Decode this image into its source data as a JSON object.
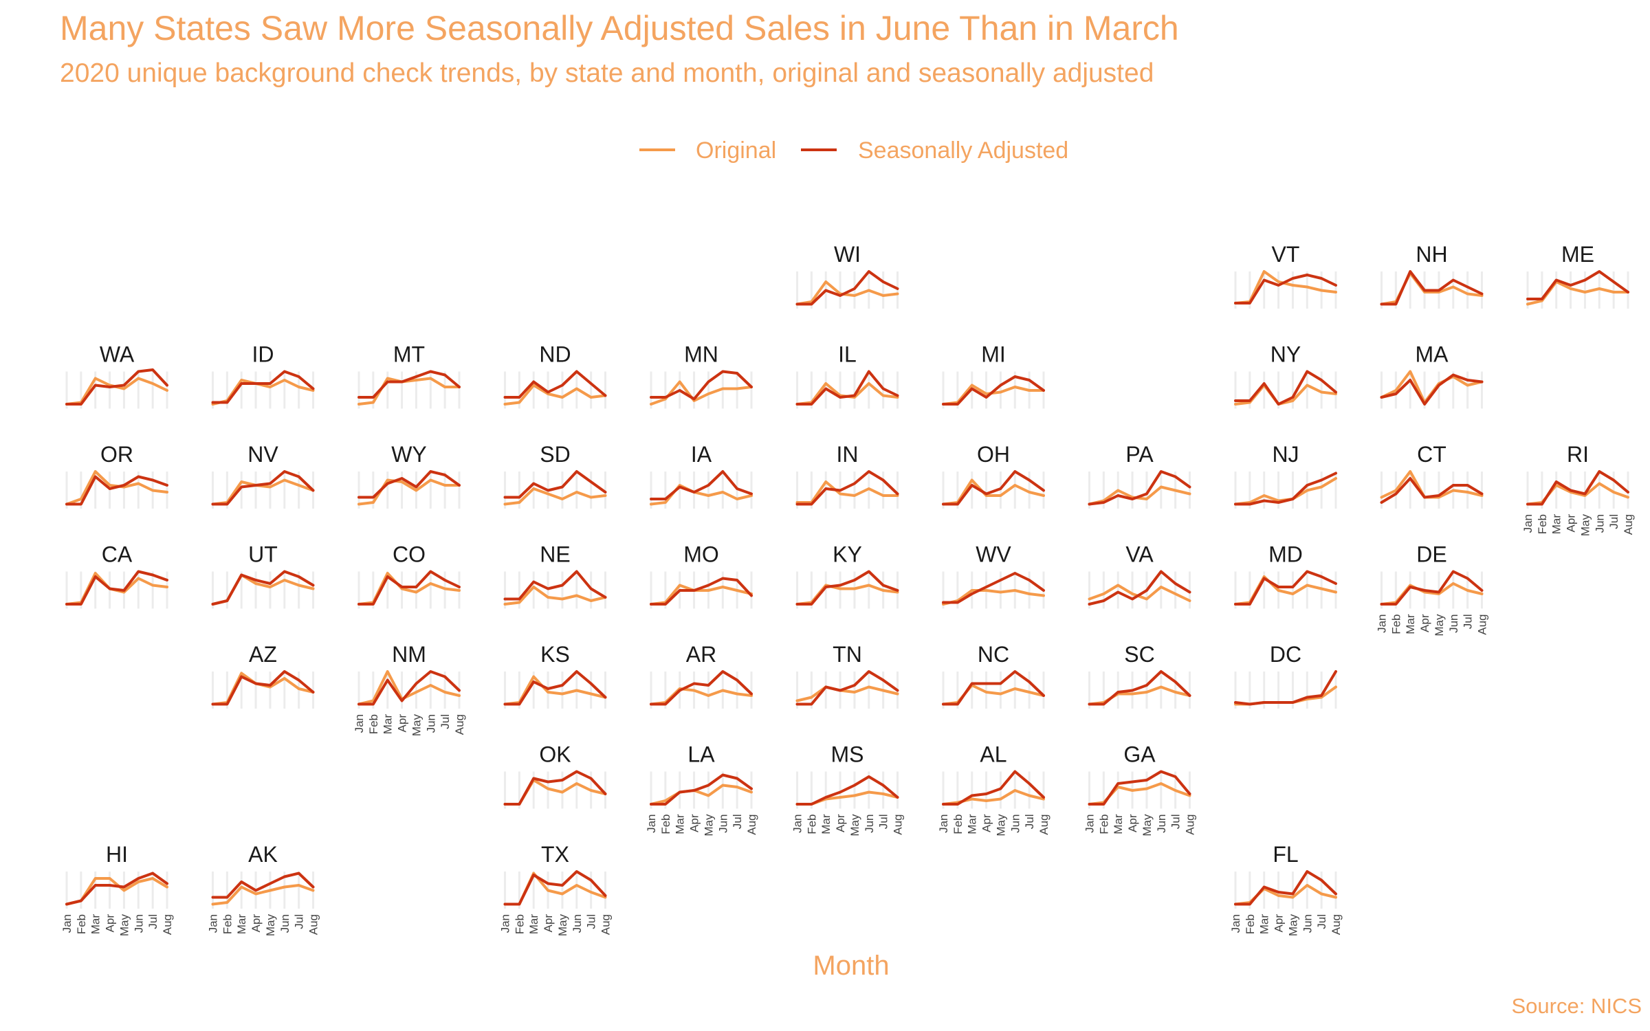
{
  "chart_data": {
    "type": "line",
    "title": "Many States Saw More Seasonally Adjusted Sales in June Than in March",
    "subtitle": "2020 unique background check trends, by state and month, original and seasonally adjusted",
    "xlabel": "Month",
    "ylabel": "",
    "source": "Source: NICS",
    "x": [
      "Jan",
      "Feb",
      "Mar",
      "Apr",
      "May",
      "Jun",
      "Jul",
      "Aug"
    ],
    "legend": {
      "position": "top",
      "items": [
        {
          "name": "Original",
          "color": "#F59A4A"
        },
        {
          "name": "Seasonally Adjusted",
          "color": "#CC3311"
        }
      ]
    },
    "panels": [
      {
        "state": "WI",
        "original": [
          0.05,
          0.12,
          0.7,
          0.35,
          0.3,
          0.45,
          0.3,
          0.35
        ],
        "adjusted": [
          0.05,
          0.05,
          0.45,
          0.3,
          0.5,
          1.0,
          0.7,
          0.5
        ]
      },
      {
        "state": "VT",
        "original": [
          0.08,
          0.12,
          1.0,
          0.7,
          0.6,
          0.55,
          0.45,
          0.4
        ],
        "adjusted": [
          0.08,
          0.08,
          0.75,
          0.6,
          0.8,
          0.9,
          0.8,
          0.6
        ]
      },
      {
        "state": "NH",
        "original": [
          0.05,
          0.12,
          0.95,
          0.4,
          0.4,
          0.55,
          0.35,
          0.3
        ],
        "adjusted": [
          0.05,
          0.05,
          1.0,
          0.45,
          0.45,
          0.75,
          0.55,
          0.35
        ]
      },
      {
        "state": "ME",
        "original": [
          0.05,
          0.15,
          0.7,
          0.5,
          0.4,
          0.5,
          0.4,
          0.4
        ],
        "adjusted": [
          0.2,
          0.2,
          0.75,
          0.6,
          0.75,
          1.0,
          0.7,
          0.4
        ]
      },
      {
        "state": "WA",
        "original": [
          0.05,
          0.1,
          0.8,
          0.6,
          0.5,
          0.8,
          0.65,
          0.45
        ],
        "adjusted": [
          0.05,
          0.05,
          0.6,
          0.55,
          0.6,
          1.0,
          1.05,
          0.6
        ]
      },
      {
        "state": "ID",
        "original": [
          0.05,
          0.15,
          0.75,
          0.65,
          0.55,
          0.75,
          0.55,
          0.45
        ],
        "adjusted": [
          0.1,
          0.1,
          0.65,
          0.65,
          0.65,
          1.0,
          0.85,
          0.5
        ]
      },
      {
        "state": "MT",
        "original": [
          0.05,
          0.1,
          0.8,
          0.7,
          0.75,
          0.8,
          0.55,
          0.55
        ],
        "adjusted": [
          0.25,
          0.25,
          0.7,
          0.7,
          0.85,
          1.0,
          0.9,
          0.55
        ]
      },
      {
        "state": "ND",
        "original": [
          0.05,
          0.1,
          0.6,
          0.35,
          0.25,
          0.5,
          0.25,
          0.3
        ],
        "adjusted": [
          0.25,
          0.25,
          0.7,
          0.4,
          0.6,
          1.0,
          0.65,
          0.3
        ]
      },
      {
        "state": "MN",
        "original": [
          0.05,
          0.2,
          0.7,
          0.15,
          0.35,
          0.5,
          0.5,
          0.55
        ],
        "adjusted": [
          0.25,
          0.25,
          0.45,
          0.2,
          0.7,
          1.0,
          0.95,
          0.55
        ]
      },
      {
        "state": "IL",
        "original": [
          0.05,
          0.1,
          0.65,
          0.3,
          0.25,
          0.65,
          0.3,
          0.25
        ],
        "adjusted": [
          0.05,
          0.05,
          0.5,
          0.25,
          0.3,
          1.0,
          0.5,
          0.3
        ]
      },
      {
        "state": "MI",
        "original": [
          0.05,
          0.1,
          0.6,
          0.35,
          0.4,
          0.55,
          0.45,
          0.45
        ],
        "adjusted": [
          0.05,
          0.05,
          0.5,
          0.25,
          0.6,
          0.85,
          0.75,
          0.45
        ]
      },
      {
        "state": "NY",
        "original": [
          0.05,
          0.1,
          0.6,
          0.05,
          0.15,
          0.6,
          0.4,
          0.35
        ],
        "adjusted": [
          0.15,
          0.15,
          0.65,
          0.05,
          0.25,
          1.0,
          0.75,
          0.4
        ]
      },
      {
        "state": "MA",
        "original": [
          0.25,
          0.45,
          1.0,
          0.1,
          0.65,
          0.85,
          0.6,
          0.7
        ],
        "adjusted": [
          0.25,
          0.35,
          0.75,
          0.05,
          0.6,
          0.9,
          0.75,
          0.7
        ]
      },
      {
        "state": "OR",
        "original": [
          0.05,
          0.2,
          1.0,
          0.6,
          0.55,
          0.65,
          0.45,
          0.4
        ],
        "adjusted": [
          0.05,
          0.05,
          0.85,
          0.5,
          0.6,
          0.85,
          0.75,
          0.6
        ]
      },
      {
        "state": "NV",
        "original": [
          0.05,
          0.1,
          0.7,
          0.6,
          0.55,
          0.75,
          0.6,
          0.45
        ],
        "adjusted": [
          0.05,
          0.05,
          0.55,
          0.6,
          0.65,
          1.0,
          0.85,
          0.45
        ]
      },
      {
        "state": "WY",
        "original": [
          0.05,
          0.1,
          0.75,
          0.7,
          0.45,
          0.75,
          0.6,
          0.6
        ],
        "adjusted": [
          0.25,
          0.25,
          0.65,
          0.8,
          0.55,
          1.0,
          0.9,
          0.6
        ]
      },
      {
        "state": "SD",
        "original": [
          0.05,
          0.1,
          0.5,
          0.35,
          0.2,
          0.4,
          0.25,
          0.3
        ],
        "adjusted": [
          0.25,
          0.25,
          0.65,
          0.45,
          0.55,
          1.0,
          0.7,
          0.4
        ]
      },
      {
        "state": "IA",
        "original": [
          0.05,
          0.1,
          0.6,
          0.4,
          0.3,
          0.4,
          0.2,
          0.3
        ],
        "adjusted": [
          0.2,
          0.2,
          0.55,
          0.4,
          0.6,
          1.0,
          0.5,
          0.35
        ]
      },
      {
        "state": "IN",
        "original": [
          0.1,
          0.1,
          0.7,
          0.35,
          0.3,
          0.5,
          0.3,
          0.3
        ],
        "adjusted": [
          0.05,
          0.05,
          0.5,
          0.45,
          0.65,
          1.0,
          0.75,
          0.35
        ]
      },
      {
        "state": "OH",
        "original": [
          0.05,
          0.1,
          0.75,
          0.3,
          0.3,
          0.6,
          0.4,
          0.3
        ],
        "adjusted": [
          0.05,
          0.05,
          0.6,
          0.35,
          0.5,
          1.0,
          0.75,
          0.45
        ]
      },
      {
        "state": "PA",
        "original": [
          0.05,
          0.15,
          0.45,
          0.25,
          0.2,
          0.55,
          0.45,
          0.35
        ],
        "adjusted": [
          0.05,
          0.1,
          0.3,
          0.2,
          0.35,
          1.0,
          0.85,
          0.55
        ]
      },
      {
        "state": "NJ",
        "original": [
          0.05,
          0.1,
          0.3,
          0.15,
          0.2,
          0.45,
          0.55,
          0.8
        ],
        "adjusted": [
          0.05,
          0.05,
          0.15,
          0.1,
          0.2,
          0.6,
          0.75,
          0.95
        ]
      },
      {
        "state": "CT",
        "original": [
          0.25,
          0.45,
          1.0,
          0.25,
          0.25,
          0.45,
          0.4,
          0.3
        ],
        "adjusted": [
          0.1,
          0.35,
          0.8,
          0.25,
          0.3,
          0.6,
          0.6,
          0.35
        ]
      },
      {
        "state": "RI",
        "original": [
          0.05,
          0.1,
          0.6,
          0.4,
          0.3,
          0.65,
          0.4,
          0.25
        ],
        "adjusted": [
          0.05,
          0.05,
          0.7,
          0.45,
          0.35,
          1.0,
          0.75,
          0.4
        ]
      },
      {
        "state": "CA",
        "original": [
          0.05,
          0.1,
          0.95,
          0.5,
          0.4,
          0.8,
          0.6,
          0.55
        ],
        "adjusted": [
          0.05,
          0.05,
          0.85,
          0.5,
          0.45,
          1.0,
          0.9,
          0.75
        ]
      },
      {
        "state": "UT",
        "original": [
          0.05,
          0.15,
          0.9,
          0.65,
          0.55,
          0.75,
          0.6,
          0.5
        ],
        "adjusted": [
          0.05,
          0.15,
          0.9,
          0.75,
          0.65,
          1.0,
          0.85,
          0.6
        ]
      },
      {
        "state": "CO",
        "original": [
          0.05,
          0.1,
          0.95,
          0.5,
          0.4,
          0.65,
          0.5,
          0.45
        ],
        "adjusted": [
          0.05,
          0.05,
          0.85,
          0.55,
          0.55,
          1.0,
          0.75,
          0.55
        ]
      },
      {
        "state": "NE",
        "original": [
          0.05,
          0.1,
          0.55,
          0.25,
          0.2,
          0.3,
          0.15,
          0.25
        ],
        "adjusted": [
          0.2,
          0.2,
          0.7,
          0.5,
          0.6,
          1.0,
          0.5,
          0.25
        ]
      },
      {
        "state": "MO",
        "original": [
          0.05,
          0.1,
          0.6,
          0.45,
          0.45,
          0.55,
          0.45,
          0.35
        ],
        "adjusted": [
          0.05,
          0.05,
          0.45,
          0.45,
          0.6,
          0.8,
          0.75,
          0.3
        ]
      },
      {
        "state": "KY",
        "original": [
          0.05,
          0.1,
          0.6,
          0.5,
          0.5,
          0.6,
          0.45,
          0.4
        ],
        "adjusted": [
          0.05,
          0.05,
          0.55,
          0.6,
          0.75,
          1.0,
          0.6,
          0.45
        ]
      },
      {
        "state": "WV",
        "original": [
          0.05,
          0.15,
          0.45,
          0.45,
          0.4,
          0.45,
          0.35,
          0.3
        ],
        "adjusted": [
          0.1,
          0.1,
          0.35,
          0.55,
          0.75,
          0.95,
          0.75,
          0.45
        ]
      },
      {
        "state": "VA",
        "original": [
          0.2,
          0.35,
          0.6,
          0.35,
          0.2,
          0.55,
          0.35,
          0.15
        ],
        "adjusted": [
          0.05,
          0.15,
          0.4,
          0.2,
          0.45,
          1.0,
          0.65,
          0.4
        ]
      },
      {
        "state": "MD",
        "original": [
          0.05,
          0.1,
          0.85,
          0.45,
          0.35,
          0.6,
          0.5,
          0.4
        ],
        "adjusted": [
          0.05,
          0.05,
          0.8,
          0.55,
          0.55,
          1.0,
          0.85,
          0.65
        ]
      },
      {
        "state": "DE",
        "original": [
          0.05,
          0.1,
          0.6,
          0.4,
          0.35,
          0.65,
          0.45,
          0.35
        ],
        "adjusted": [
          0.05,
          0.05,
          0.55,
          0.45,
          0.4,
          1.0,
          0.8,
          0.45
        ]
      },
      {
        "state": "AZ",
        "original": [
          0.05,
          0.1,
          0.95,
          0.65,
          0.55,
          0.8,
          0.5,
          0.4
        ],
        "adjusted": [
          0.05,
          0.05,
          0.85,
          0.65,
          0.6,
          1.0,
          0.75,
          0.4
        ]
      },
      {
        "state": "NM",
        "original": [
          0.05,
          0.15,
          1.0,
          0.2,
          0.4,
          0.6,
          0.4,
          0.3
        ],
        "adjusted": [
          0.05,
          0.05,
          0.75,
          0.15,
          0.65,
          1.0,
          0.85,
          0.45
        ]
      },
      {
        "state": "KS",
        "original": [
          0.05,
          0.1,
          0.85,
          0.4,
          0.35,
          0.45,
          0.35,
          0.25
        ],
        "adjusted": [
          0.05,
          0.05,
          0.7,
          0.5,
          0.6,
          1.0,
          0.65,
          0.25
        ]
      },
      {
        "state": "AR",
        "original": [
          0.05,
          0.1,
          0.5,
          0.45,
          0.3,
          0.45,
          0.35,
          0.3
        ],
        "adjusted": [
          0.05,
          0.05,
          0.45,
          0.65,
          0.6,
          1.0,
          0.75,
          0.35
        ]
      },
      {
        "state": "TN",
        "original": [
          0.15,
          0.25,
          0.55,
          0.45,
          0.4,
          0.55,
          0.45,
          0.35
        ],
        "adjusted": [
          0.05,
          0.05,
          0.55,
          0.45,
          0.6,
          1.0,
          0.75,
          0.45
        ]
      },
      {
        "state": "NC",
        "original": [
          0.05,
          0.1,
          0.6,
          0.4,
          0.35,
          0.5,
          0.4,
          0.3
        ],
        "adjusted": [
          0.05,
          0.05,
          0.65,
          0.65,
          0.65,
          1.0,
          0.7,
          0.3
        ]
      },
      {
        "state": "SC",
        "original": [
          0.05,
          0.1,
          0.35,
          0.35,
          0.4,
          0.55,
          0.4,
          0.3
        ],
        "adjusted": [
          0.05,
          0.05,
          0.4,
          0.45,
          0.6,
          1.0,
          0.7,
          0.3
        ]
      },
      {
        "state": "DC",
        "original": [
          0.05,
          0.05,
          0.1,
          0.1,
          0.1,
          0.2,
          0.25,
          0.55
        ],
        "adjusted": [
          0.1,
          0.05,
          0.1,
          0.1,
          0.1,
          0.25,
          0.3,
          1.0
        ]
      },
      {
        "state": "OK",
        "original": [
          0.05,
          0.05,
          0.75,
          0.5,
          0.4,
          0.65,
          0.45,
          0.35
        ],
        "adjusted": [
          0.05,
          0.05,
          0.8,
          0.7,
          0.75,
          1.0,
          0.8,
          0.35
        ]
      },
      {
        "state": "LA",
        "original": [
          0.05,
          0.15,
          0.4,
          0.45,
          0.3,
          0.6,
          0.55,
          0.4
        ],
        "adjusted": [
          0.05,
          0.05,
          0.4,
          0.45,
          0.6,
          0.9,
          0.8,
          0.5
        ]
      },
      {
        "state": "MS",
        "original": [
          0.05,
          0.05,
          0.2,
          0.25,
          0.3,
          0.4,
          0.35,
          0.25
        ],
        "adjusted": [
          0.05,
          0.05,
          0.25,
          0.4,
          0.6,
          0.85,
          0.6,
          0.25
        ]
      },
      {
        "state": "AL",
        "original": [
          0.05,
          0.1,
          0.2,
          0.15,
          0.2,
          0.45,
          0.3,
          0.2
        ],
        "adjusted": [
          0.05,
          0.05,
          0.3,
          0.35,
          0.5,
          1.0,
          0.65,
          0.25
        ]
      },
      {
        "state": "GA",
        "original": [
          0.05,
          0.1,
          0.55,
          0.45,
          0.5,
          0.65,
          0.45,
          0.3
        ],
        "adjusted": [
          0.05,
          0.05,
          0.65,
          0.7,
          0.75,
          1.0,
          0.85,
          0.35
        ]
      },
      {
        "state": "HI",
        "original": [
          0.05,
          0.15,
          0.8,
          0.8,
          0.45,
          0.7,
          0.8,
          0.55
        ],
        "adjusted": [
          0.05,
          0.15,
          0.6,
          0.6,
          0.55,
          0.8,
          0.95,
          0.65
        ]
      },
      {
        "state": "AK",
        "original": [
          0.05,
          0.1,
          0.55,
          0.35,
          0.45,
          0.55,
          0.6,
          0.45
        ],
        "adjusted": [
          0.25,
          0.25,
          0.7,
          0.45,
          0.65,
          0.85,
          0.95,
          0.55
        ]
      },
      {
        "state": "TX",
        "original": [
          0.05,
          0.05,
          0.95,
          0.45,
          0.35,
          0.6,
          0.4,
          0.25
        ],
        "adjusted": [
          0.05,
          0.05,
          0.9,
          0.65,
          0.6,
          1.0,
          0.75,
          0.3
        ]
      },
      {
        "state": "FL",
        "original": [
          0.05,
          0.1,
          0.5,
          0.3,
          0.25,
          0.6,
          0.35,
          0.25
        ],
        "adjusted": [
          0.05,
          0.05,
          0.55,
          0.4,
          0.35,
          1.0,
          0.75,
          0.35
        ]
      }
    ],
    "x_tick_labels_shown_for": [
      "RI",
      "DE",
      "NM",
      "LA",
      "MS",
      "AL",
      "GA",
      "HI",
      "AK",
      "TX",
      "FL"
    ]
  }
}
